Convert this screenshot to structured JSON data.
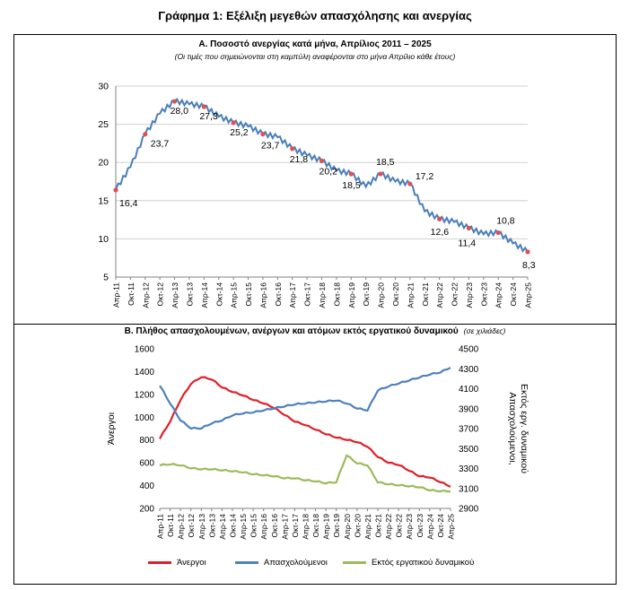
{
  "figure_title": "Γράφημα 1: Εξέλιξη μεγεθών απασχόλησης και ανεργίας",
  "panel_a": {
    "title": "Α. Ποσοστό ανεργίας κατά μήνα, Απρίλιος 2011 – 2025",
    "subtitle": "(Οι τιμές που σημειώνονται στη καμπύλη αναφέρονται στο μήνα Απρίλιο κάθε έτους)"
  },
  "panel_b": {
    "title": "Β. Πλήθος απασχολουμένων, ανέργων και ατόμων εκτός εργατικού δυναμικού",
    "unit": "(σε χιλιάδες)",
    "left_axis_label": "Άνεργοι",
    "right_axis_label_1": "Απασχολούμενοι,",
    "right_axis_label_2": "Εκτός εργ. δυναμικού"
  },
  "colors": {
    "rate_line": "#4a7ebb",
    "rate_marker": "#e05050",
    "unemployed": "#e0202a",
    "employed": "#4f81bd",
    "outside": "#9bbb59",
    "grid": "#d0d0d0"
  },
  "chart_data": [
    {
      "type": "line",
      "title": "Α. Ποσοστό ανεργίας κατά μήνα, Απρίλιος 2011 – 2025",
      "ylim": [
        5,
        30
      ],
      "yticks": [
        "5",
        "10",
        "15",
        "20",
        "25",
        "30"
      ],
      "x_tick_labels": [
        "Απρ-11",
        "Οκτ-11",
        "Απρ-12",
        "Οκτ-12",
        "Απρ-13",
        "Οκτ-13",
        "Απρ-14",
        "Οκτ-14",
        "Απρ-15",
        "Οκτ-15",
        "Απρ-16",
        "Οκτ-16",
        "Απρ-17",
        "Οκτ-17",
        "Απρ-18",
        "Οκτ-18",
        "Απρ-19",
        "Οκτ-19",
        "Απρ-20",
        "Οκτ-20",
        "Απρ-21",
        "Οκτ-21",
        "Απρ-22",
        "Οκτ-22",
        "Απρ-23",
        "Οκτ-23",
        "Απρ-24",
        "Οκτ-24",
        "Απρ-25"
      ],
      "semiannual_values": [
        16.4,
        19.4,
        23.7,
        26.4,
        28.0,
        27.6,
        27.3,
        26.0,
        25.2,
        24.7,
        23.7,
        23.3,
        21.8,
        20.9,
        20.2,
        18.9,
        18.5,
        16.8,
        18.5,
        17.5,
        17.2,
        13.6,
        12.6,
        12.2,
        11.4,
        10.6,
        10.8,
        9.4,
        8.3
      ],
      "april_labels": [
        {
          "year": "Απρ-11",
          "value": 16.4,
          "label": "16,4"
        },
        {
          "year": "Απρ-12",
          "value": 23.7,
          "label": "23,7"
        },
        {
          "year": "Απρ-13",
          "value": 28.0,
          "label": "28,0"
        },
        {
          "year": "Απρ-14",
          "value": 27.3,
          "label": "27,3"
        },
        {
          "year": "Απρ-15",
          "value": 25.2,
          "label": "25,2"
        },
        {
          "year": "Απρ-16",
          "value": 23.7,
          "label": "23,7"
        },
        {
          "year": "Απρ-17",
          "value": 21.8,
          "label": "21,8"
        },
        {
          "year": "Απρ-18",
          "value": 20.2,
          "label": "20,2"
        },
        {
          "year": "Απρ-19",
          "value": 18.5,
          "label": "18,5"
        },
        {
          "year": "Απρ-20",
          "value": 18.5,
          "label": "18,5"
        },
        {
          "year": "Απρ-21",
          "value": 17.2,
          "label": "17,2"
        },
        {
          "year": "Απρ-22",
          "value": 12.6,
          "label": "12,6"
        },
        {
          "year": "Απρ-23",
          "value": 11.4,
          "label": "11,4"
        },
        {
          "year": "Απρ-24",
          "value": 10.8,
          "label": "10,8"
        },
        {
          "year": "Απρ-25",
          "value": 8.3,
          "label": "8,3"
        }
      ]
    },
    {
      "type": "line",
      "title": "Β. Πλήθος απασχολουμένων, ανέργων και ατόμων εκτός εργατικού δυναμικού",
      "ylim_left": [
        200,
        1600
      ],
      "yticks_left": [
        "200",
        "400",
        "600",
        "800",
        "1000",
        "1200",
        "1400",
        "1600"
      ],
      "ylim_right": [
        2900,
        4500
      ],
      "yticks_right": [
        "2900",
        "3100",
        "3300",
        "3500",
        "3700",
        "3900",
        "4100",
        "4300",
        "4500"
      ],
      "x_tick_labels": [
        "Απρ-11",
        "Οκτ-11",
        "Απρ-12",
        "Οκτ-12",
        "Απρ-13",
        "Οκτ-13",
        "Απρ-14",
        "Οκτ-14",
        "Απρ-15",
        "Οκτ-15",
        "Απρ-16",
        "Οκτ-16",
        "Απρ-17",
        "Οκτ-17",
        "Απρ-18",
        "Οκτ-18",
        "Απρ-19",
        "Οκτ-19",
        "Απρ-20",
        "Οκτ-20",
        "Απρ-21",
        "Οκτ-21",
        "Απρ-22",
        "Οκτ-22",
        "Απρ-23",
        "Οκτ-23",
        "Απρ-24",
        "Οκτ-24",
        "Απρ-25"
      ],
      "series": [
        {
          "name": "Άνεργοι",
          "axis": "left",
          "values": [
            810,
            960,
            1150,
            1290,
            1350,
            1330,
            1260,
            1220,
            1190,
            1150,
            1120,
            1080,
            1020,
            960,
            930,
            890,
            850,
            820,
            800,
            780,
            740,
            650,
            600,
            580,
            530,
            480,
            470,
            430,
            390
          ]
        },
        {
          "name": "Απασχολούμενοι",
          "axis": "right",
          "values": [
            4130,
            3950,
            3780,
            3700,
            3700,
            3750,
            3780,
            3830,
            3850,
            3860,
            3880,
            3900,
            3920,
            3940,
            3950,
            3960,
            3970,
            3980,
            3950,
            3900,
            3880,
            4080,
            4120,
            4150,
            4180,
            4210,
            4240,
            4260,
            4310
          ]
        },
        {
          "name": "Εκτός εργατικού δυναμικού",
          "axis": "right",
          "values": [
            3330,
            3340,
            3330,
            3300,
            3290,
            3290,
            3280,
            3270,
            3260,
            3240,
            3230,
            3220,
            3200,
            3200,
            3180,
            3170,
            3150,
            3160,
            3430,
            3350,
            3330,
            3160,
            3140,
            3130,
            3120,
            3110,
            3080,
            3070,
            3070
          ]
        }
      ]
    }
  ]
}
